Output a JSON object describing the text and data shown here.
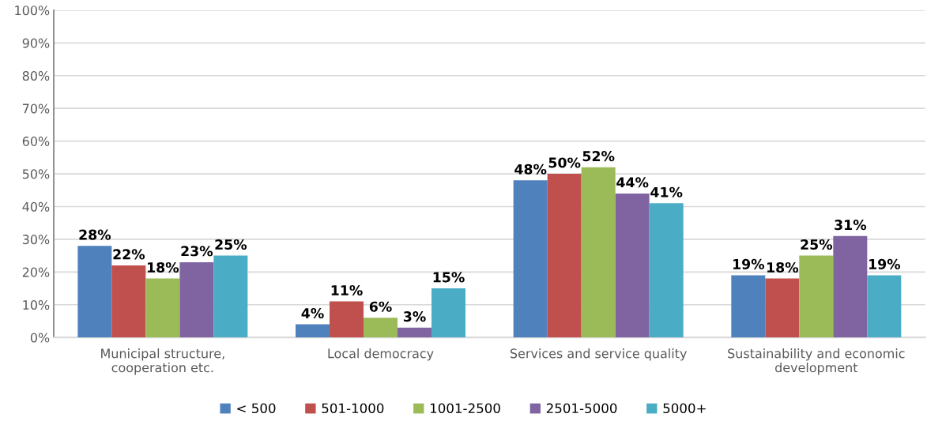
{
  "chart_data": {
    "type": "bar",
    "categories": [
      "Municipal structure,\ncooperation etc.",
      "Local democracy",
      "Services and service quality",
      "Sustainability and economic\ndevelopment"
    ],
    "series": [
      {
        "name": "< 500",
        "color": "#4f81bd",
        "values": [
          28,
          4,
          48,
          19
        ]
      },
      {
        "name": "501-1000",
        "color": "#c0504d",
        "values": [
          22,
          11,
          50,
          18
        ]
      },
      {
        "name": "1001-2500",
        "color": "#9bbb59",
        "values": [
          18,
          6,
          52,
          25
        ]
      },
      {
        "name": "2501-5000",
        "color": "#8064a2",
        "values": [
          23,
          3,
          44,
          31
        ]
      },
      {
        "name": "5000+",
        "color": "#4bacc6",
        "values": [
          25,
          15,
          41,
          19
        ]
      }
    ],
    "ylim": [
      0,
      100
    ],
    "yticks": [
      {
        "value": 0,
        "label": "0%"
      },
      {
        "value": 10,
        "label": "10%"
      },
      {
        "value": 20,
        "label": "20%"
      },
      {
        "value": 30,
        "label": "30%"
      },
      {
        "value": 40,
        "label": "40%"
      },
      {
        "value": 50,
        "label": "50%"
      },
      {
        "value": 60,
        "label": "60%"
      },
      {
        "value": 70,
        "label": "70%"
      },
      {
        "value": 80,
        "label": "80%"
      },
      {
        "value": 90,
        "label": "90%"
      },
      {
        "value": 100,
        "label": "100%"
      }
    ],
    "value_labels": [
      [
        "28%",
        "4%",
        "48%",
        "19%"
      ],
      [
        "22%",
        "11%",
        "50%",
        "18%"
      ],
      [
        "18%",
        "6%",
        "52%",
        "25%"
      ],
      [
        "23%",
        "3%",
        "44%",
        "31%"
      ],
      [
        "25%",
        "15%",
        "41%",
        "19%"
      ]
    ],
    "grid": "y",
    "legend": "bottom"
  }
}
